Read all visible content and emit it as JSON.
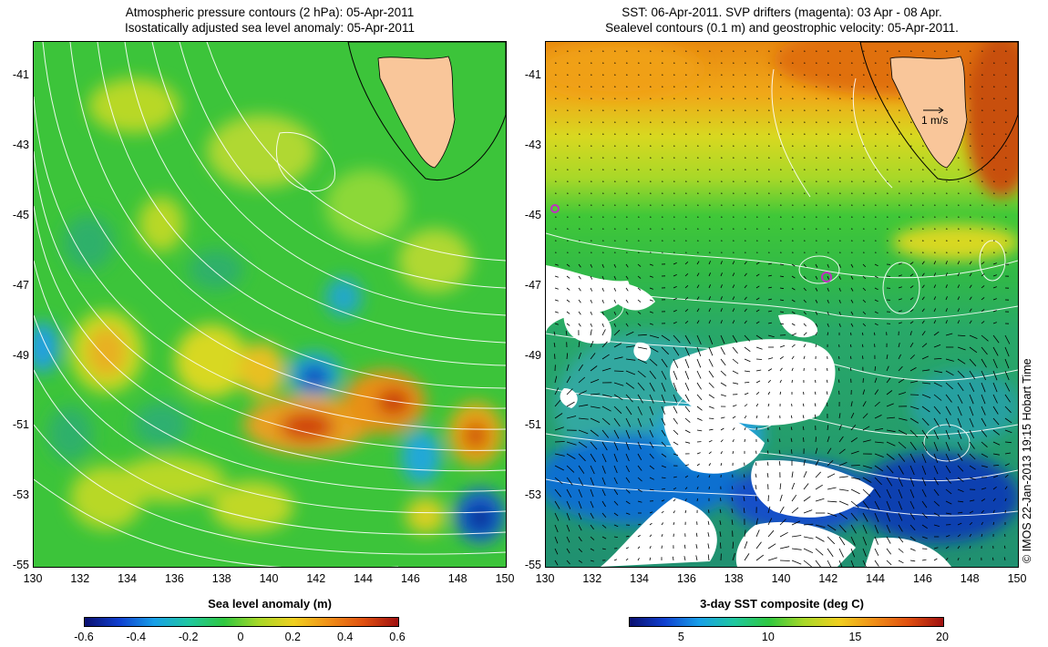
{
  "left_panel": {
    "title_line1": "Atmospheric pressure contours (2 hPa): 05-Apr-2011",
    "title_line2": "Isostatically adjusted sea level anomaly: 05-Apr-2011",
    "colorbar_title": "Sea level anomaly (m)",
    "colorbar_ticks": [
      "-0.6",
      "-0.4",
      "-0.2",
      "0",
      "0.2",
      "0.4",
      "0.6"
    ],
    "colorbar_range": [
      -0.6,
      0.6
    ]
  },
  "right_panel": {
    "title_line1": "SST: 06-Apr-2011. SVP drifters (magenta): 03 Apr - 08 Apr.",
    "title_line2": "Sealevel contours (0.1 m) and geostrophic velocity: 05-Apr-2011.",
    "colorbar_title": "3-day SST composite (deg C)",
    "colorbar_ticks": [
      "5",
      "10",
      "15",
      "20"
    ],
    "colorbar_range": [
      2,
      20
    ],
    "velocity_scale_label": "1 m/s"
  },
  "axes": {
    "lon_ticks": [
      "130",
      "132",
      "134",
      "136",
      "138",
      "140",
      "142",
      "144",
      "146",
      "148",
      "150"
    ],
    "lat_ticks": [
      "-41",
      "-43",
      "-45",
      "-47",
      "-49",
      "-51",
      "-53",
      "-55"
    ],
    "lon_range": [
      130,
      150
    ],
    "lat_range": [
      -55,
      -40
    ]
  },
  "credit": "© IMOS 22-Jan-2013 19:15 Hobart Time",
  "colors": {
    "land": "#f9c69a",
    "ocean_mid_green": "#3fca35",
    "sst_warm": "#e07a10",
    "sst_cold": "#1030b8",
    "drifter_magenta": "#c030c0"
  }
}
